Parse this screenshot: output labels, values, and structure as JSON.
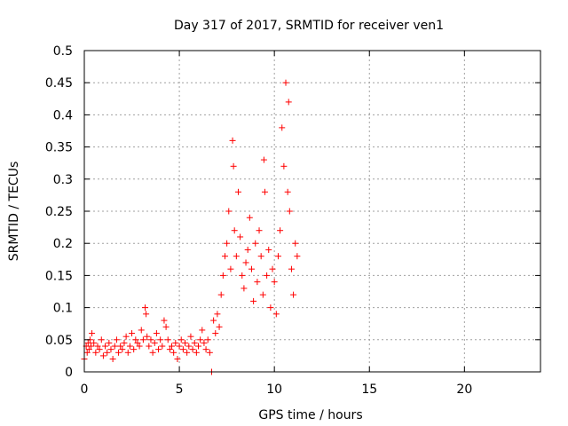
{
  "chart_data": {
    "type": "scatter",
    "title": "Day 317 of 2017, SRMTID for receiver ven1",
    "xlabel": "GPS time / hours",
    "ylabel": "SRMTID / TECUs",
    "xlim": [
      0,
      24
    ],
    "ylim": [
      0,
      0.5
    ],
    "xticks": [
      0,
      5,
      10,
      15,
      20
    ],
    "xtick_labels": [
      "0",
      "5",
      "10",
      "15",
      "20"
    ],
    "yticks": [
      0,
      0.05,
      0.1,
      0.15,
      0.2,
      0.25,
      0.3,
      0.35,
      0.4,
      0.45,
      0.5
    ],
    "ytick_labels": [
      "0",
      "0.05",
      "0.1",
      "0.15",
      "0.2",
      "0.25",
      "0.3",
      "0.35",
      "0.4",
      "0.45",
      "0.5"
    ],
    "grid": true,
    "marker": "+",
    "color": "#ff0000",
    "series": [
      {
        "name": "SRMTID",
        "x": [
          0.0,
          0.1,
          0.15,
          0.2,
          0.25,
          0.3,
          0.35,
          0.4,
          0.5,
          0.6,
          0.7,
          0.8,
          0.9,
          1.0,
          1.1,
          1.2,
          1.3,
          1.4,
          1.5,
          1.6,
          1.7,
          1.8,
          1.9,
          2.0,
          2.1,
          2.2,
          2.3,
          2.4,
          2.5,
          2.6,
          2.7,
          2.8,
          2.9,
          3.0,
          3.1,
          3.2,
          3.25,
          3.3,
          3.4,
          3.5,
          3.6,
          3.7,
          3.8,
          3.9,
          4.0,
          4.1,
          4.2,
          4.3,
          4.4,
          4.5,
          4.6,
          4.7,
          4.8,
          4.9,
          5.0,
          5.1,
          5.2,
          5.3,
          5.4,
          5.5,
          5.6,
          5.7,
          5.8,
          5.9,
          6.0,
          6.1,
          6.2,
          6.3,
          6.4,
          6.5,
          6.6,
          6.7,
          6.8,
          6.9,
          7.0,
          7.1,
          7.2,
          7.3,
          7.4,
          7.5,
          7.6,
          7.7,
          7.8,
          7.85,
          7.9,
          8.0,
          8.1,
          8.2,
          8.3,
          8.4,
          8.5,
          8.6,
          8.7,
          8.8,
          8.9,
          9.0,
          9.1,
          9.2,
          9.3,
          9.4,
          9.45,
          9.5,
          9.6,
          9.7,
          9.8,
          9.9,
          10.0,
          10.1,
          10.2,
          10.3,
          10.4,
          10.5,
          10.6,
          10.7,
          10.75,
          10.8,
          10.9,
          11.0,
          11.1,
          11.2
        ],
        "y": [
          0.02,
          0.04,
          0.03,
          0.045,
          0.035,
          0.05,
          0.04,
          0.06,
          0.045,
          0.03,
          0.04,
          0.035,
          0.05,
          0.025,
          0.04,
          0.03,
          0.045,
          0.035,
          0.02,
          0.04,
          0.05,
          0.03,
          0.04,
          0.035,
          0.045,
          0.055,
          0.03,
          0.04,
          0.06,
          0.035,
          0.05,
          0.045,
          0.04,
          0.065,
          0.05,
          0.1,
          0.09,
          0.055,
          0.04,
          0.05,
          0.03,
          0.045,
          0.06,
          0.035,
          0.05,
          0.04,
          0.08,
          0.07,
          0.05,
          0.035,
          0.04,
          0.03,
          0.045,
          0.02,
          0.04,
          0.05,
          0.035,
          0.045,
          0.03,
          0.04,
          0.055,
          0.035,
          0.045,
          0.03,
          0.04,
          0.05,
          0.065,
          0.045,
          0.035,
          0.05,
          0.03,
          0.0,
          0.08,
          0.06,
          0.09,
          0.07,
          0.12,
          0.15,
          0.18,
          0.2,
          0.25,
          0.16,
          0.36,
          0.32,
          0.22,
          0.18,
          0.28,
          0.21,
          0.15,
          0.13,
          0.17,
          0.19,
          0.24,
          0.16,
          0.11,
          0.2,
          0.14,
          0.22,
          0.18,
          0.12,
          0.33,
          0.28,
          0.15,
          0.19,
          0.1,
          0.16,
          0.14,
          0.09,
          0.18,
          0.22,
          0.38,
          0.32,
          0.45,
          0.28,
          0.42,
          0.25,
          0.16,
          0.12,
          0.2,
          0.18
        ]
      }
    ]
  }
}
